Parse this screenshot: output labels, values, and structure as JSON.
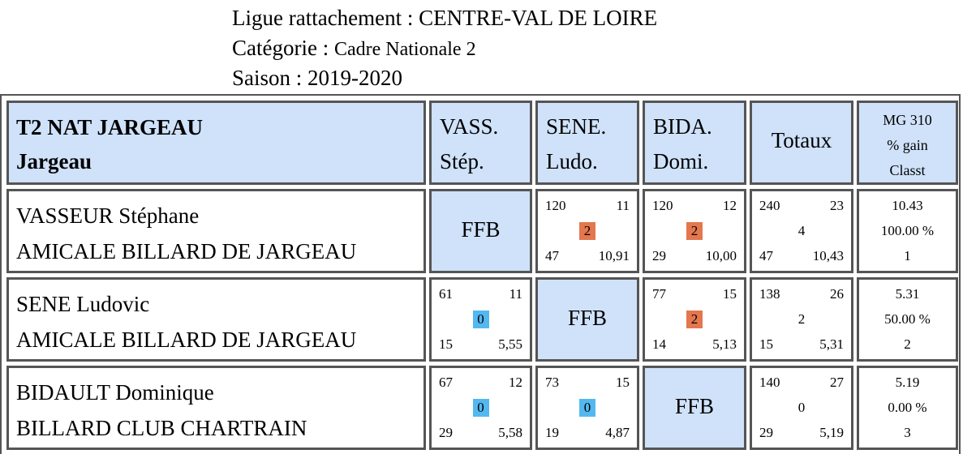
{
  "header": {
    "ligue_label": "Ligue rattachement : ",
    "ligue_value": "CENTRE-VAL DE LOIRE",
    "categorie_label": "Catégorie : ",
    "categorie_value": "Cadre Nationale 2",
    "saison_label": "Saison : ",
    "saison_value": "2019-2020"
  },
  "table": {
    "team_name": "T2 NAT JARGEAU",
    "team_city": "Jargeau",
    "columns": [
      {
        "line1": "VASS.",
        "line2": "Stép."
      },
      {
        "line1": "SENE.",
        "line2": "Ludo."
      },
      {
        "line1": "BIDA.",
        "line2": "Domi."
      }
    ],
    "totaux_label": "Totaux",
    "mg_header": {
      "line1": "MG 310",
      "line2": "% gain",
      "line3": "Classt"
    },
    "ffb_label": "FFB",
    "players": [
      {
        "name": "VASSEUR Stéphane",
        "club": "AMICALE BILLARD DE JARGEAU",
        "matches": [
          null,
          {
            "points": "120",
            "reprises": "11",
            "score": "2",
            "result": "win",
            "serie": "47",
            "moyenne": "10,91"
          },
          {
            "points": "120",
            "reprises": "12",
            "score": "2",
            "result": "win",
            "serie": "29",
            "moyenne": "10,00"
          }
        ],
        "totals": {
          "points": "240",
          "reprises": "23",
          "match_pts": "4",
          "serie": "47",
          "moyenne": "10,43"
        },
        "summary": {
          "mg": "10.43",
          "gain": "100.00 %",
          "rank": "1"
        }
      },
      {
        "name": "SENE Ludovic",
        "club": "AMICALE BILLARD DE JARGEAU",
        "matches": [
          {
            "points": "61",
            "reprises": "11",
            "score": "0",
            "result": "loss",
            "serie": "15",
            "moyenne": "5,55"
          },
          null,
          {
            "points": "77",
            "reprises": "15",
            "score": "2",
            "result": "win",
            "serie": "14",
            "moyenne": "5,13"
          }
        ],
        "totals": {
          "points": "138",
          "reprises": "26",
          "match_pts": "2",
          "serie": "15",
          "moyenne": "5,31"
        },
        "summary": {
          "mg": "5.31",
          "gain": "50.00 %",
          "rank": "2"
        }
      },
      {
        "name": "BIDAULT Dominique",
        "club": "BILLARD CLUB CHARTRAIN",
        "matches": [
          {
            "points": "67",
            "reprises": "12",
            "score": "0",
            "result": "loss",
            "serie": "29",
            "moyenne": "5,58"
          },
          {
            "points": "73",
            "reprises": "15",
            "score": "0",
            "result": "loss",
            "serie": "19",
            "moyenne": "4,87"
          },
          null
        ],
        "totals": {
          "points": "140",
          "reprises": "27",
          "match_pts": "0",
          "serie": "29",
          "moyenne": "5,19"
        },
        "summary": {
          "mg": "5.19",
          "gain": "0.00 %",
          "rank": "3"
        }
      }
    ]
  }
}
